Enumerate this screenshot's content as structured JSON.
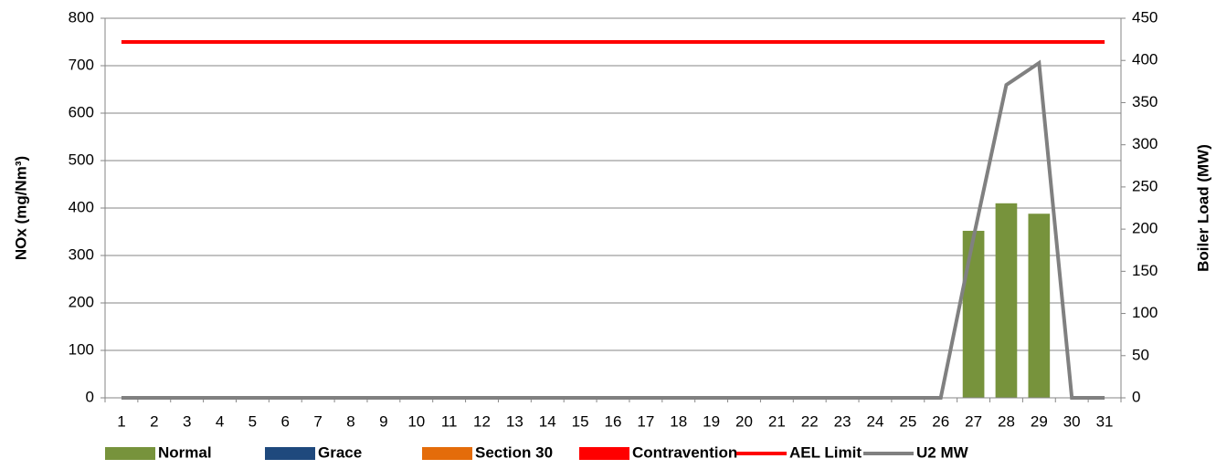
{
  "chart_data": {
    "type": "bar_line",
    "categories": [
      "1",
      "2",
      "3",
      "4",
      "5",
      "6",
      "7",
      "8",
      "9",
      "10",
      "11",
      "12",
      "13",
      "14",
      "15",
      "16",
      "17",
      "18",
      "19",
      "20",
      "21",
      "22",
      "23",
      "24",
      "25",
      "26",
      "27",
      "28",
      "29",
      "30",
      "31"
    ],
    "ylabel": "NOx (mg/Nm³)",
    "y2label": "Boiler Load (MW)",
    "ylim": [
      0,
      800
    ],
    "yticks": [
      0,
      100,
      200,
      300,
      400,
      500,
      600,
      700,
      800
    ],
    "y2lim": [
      0,
      450
    ],
    "y2ticks": [
      0,
      50,
      100,
      150,
      200,
      250,
      300,
      350,
      400,
      450
    ],
    "grid": true,
    "legend": "bottom",
    "series": [
      {
        "name": "Normal",
        "color": "#77933c",
        "kind": "bar",
        "values": [
          0,
          0,
          0,
          0,
          0,
          0,
          0,
          0,
          0,
          0,
          0,
          0,
          0,
          0,
          0,
          0,
          0,
          0,
          0,
          0,
          0,
          0,
          0,
          0,
          0,
          0,
          352,
          410,
          388,
          0,
          0
        ]
      },
      {
        "name": "Grace",
        "color": "#1f497d",
        "kind": "bar",
        "values": [
          0,
          0,
          0,
          0,
          0,
          0,
          0,
          0,
          0,
          0,
          0,
          0,
          0,
          0,
          0,
          0,
          0,
          0,
          0,
          0,
          0,
          0,
          0,
          0,
          0,
          0,
          0,
          0,
          0,
          0,
          0
        ]
      },
      {
        "name": "Section 30",
        "color": "#e46c0a",
        "kind": "bar",
        "values": [
          0,
          0,
          0,
          0,
          0,
          0,
          0,
          0,
          0,
          0,
          0,
          0,
          0,
          0,
          0,
          0,
          0,
          0,
          0,
          0,
          0,
          0,
          0,
          0,
          0,
          0,
          0,
          0,
          0,
          0,
          0
        ]
      },
      {
        "name": "Contravention",
        "color": "#ff0000",
        "kind": "bar",
        "values": [
          0,
          0,
          0,
          0,
          0,
          0,
          0,
          0,
          0,
          0,
          0,
          0,
          0,
          0,
          0,
          0,
          0,
          0,
          0,
          0,
          0,
          0,
          0,
          0,
          0,
          0,
          0,
          0,
          0,
          0,
          0
        ]
      },
      {
        "name": "AEL Limit",
        "color": "#ff0000",
        "kind": "line",
        "values": [
          750,
          750,
          750,
          750,
          750,
          750,
          750,
          750,
          750,
          750,
          750,
          750,
          750,
          750,
          750,
          750,
          750,
          750,
          750,
          750,
          750,
          750,
          750,
          750,
          750,
          750,
          750,
          750,
          750,
          750,
          750
        ]
      },
      {
        "name": "U2 MW",
        "color": "#808080",
        "kind": "line",
        "axis": "y2",
        "values": [
          0,
          0,
          0,
          0,
          0,
          0,
          0,
          0,
          0,
          0,
          0,
          0,
          0,
          0,
          0,
          0,
          0,
          0,
          0,
          0,
          0,
          0,
          0,
          0,
          0,
          0,
          190,
          371,
          397,
          0,
          0
        ]
      }
    ]
  }
}
